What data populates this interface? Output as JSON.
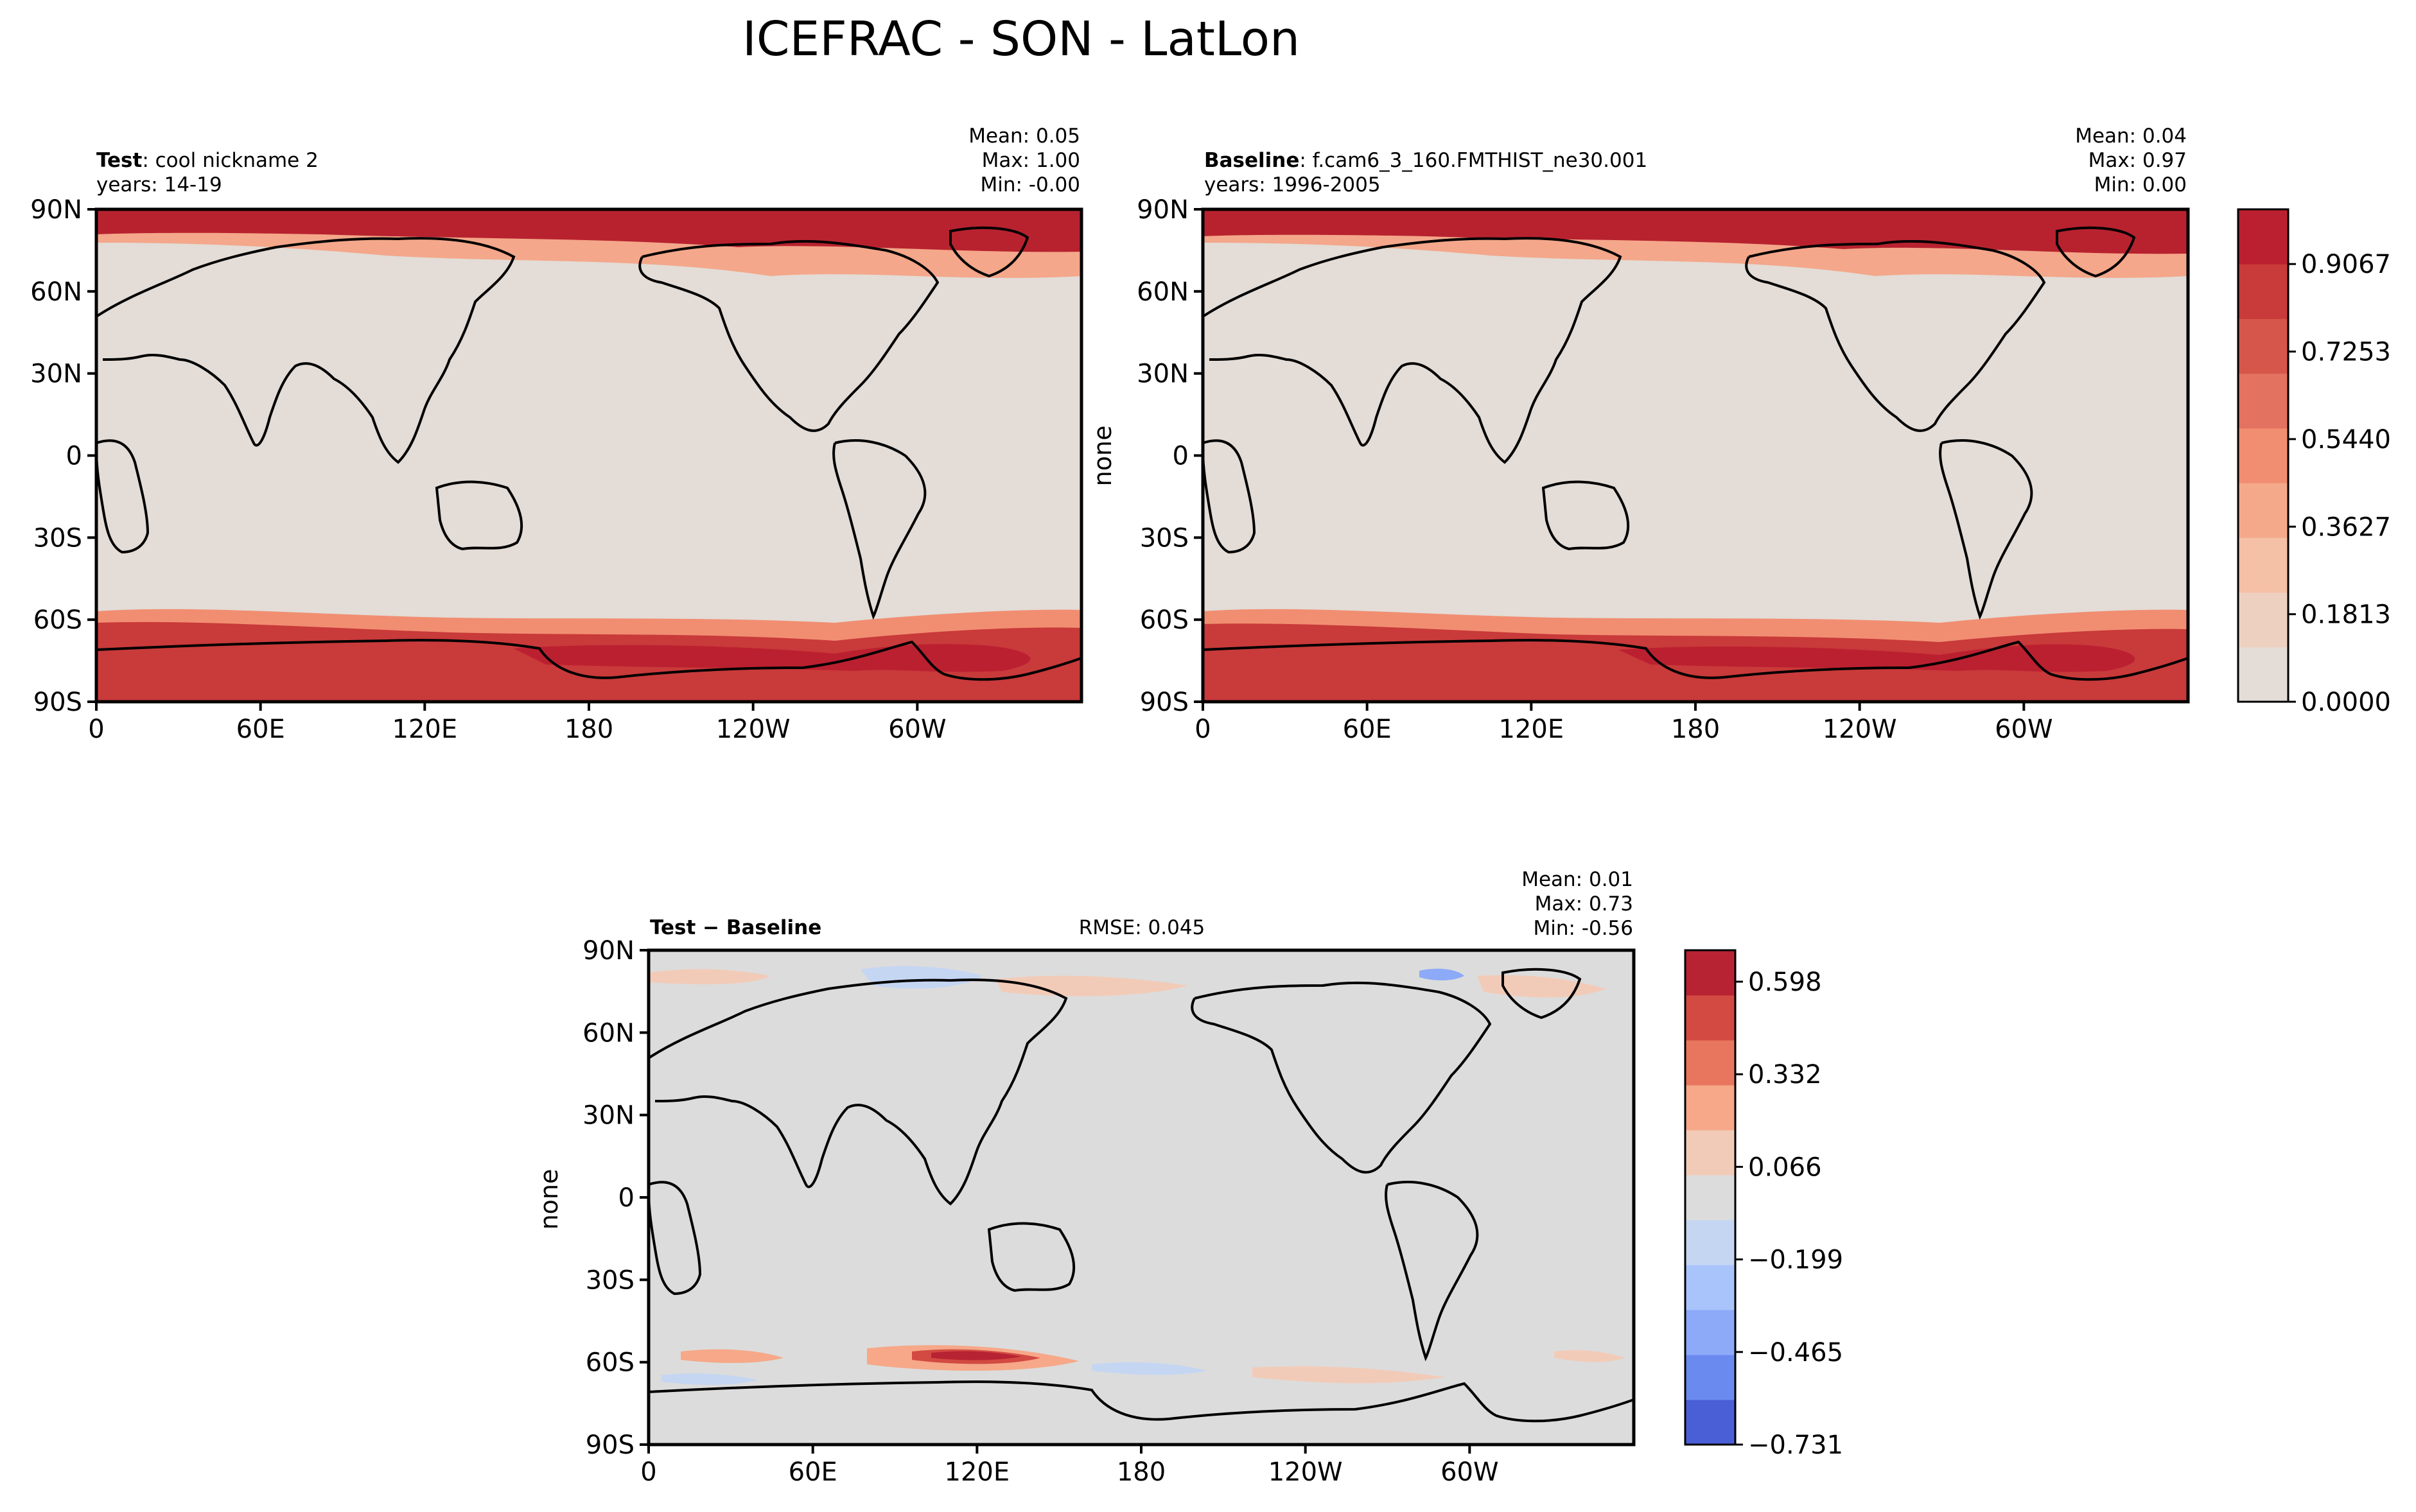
{
  "title": "ICEFRAC - SON - LatLon",
  "chart_data": [
    {
      "type": "heatmap",
      "panel": "test",
      "label_bold": "Test",
      "label_rest": ": cool nickname 2",
      "years": "years: 14-19",
      "ylabel": "",
      "stats": {
        "mean": "Mean:  0.05",
        "max": "Max:  1.00",
        "min": "Min: -0.00"
      },
      "xticks": [
        "0",
        "60E",
        "120E",
        "180",
        "120W",
        "60W"
      ],
      "yticks": [
        "90N",
        "60N",
        "30N",
        "0",
        "30S",
        "60S",
        "90S"
      ],
      "xlim": [
        0,
        360
      ],
      "ylim": [
        -90,
        90
      ],
      "field": "ICEFRAC",
      "colors": {
        "land_ocean": "#e3dcd7",
        "ice_high": "#b8222f",
        "ice_mid": "#d8523e",
        "ice_edge": "#f4a78a"
      }
    },
    {
      "type": "heatmap",
      "panel": "baseline",
      "label_bold": "Baseline",
      "label_rest": ": f.cam6_3_160.FMTHIST_ne30.001",
      "years": "years: 1996-2005",
      "ylabel": "none",
      "stats": {
        "mean": "Mean:  0.04",
        "max": "Max:  0.97",
        "min": "Min:  0.00"
      },
      "xticks": [
        "0",
        "60E",
        "120E",
        "180",
        "120W",
        "60W"
      ],
      "yticks": [
        "90N",
        "60N",
        "30N",
        "0",
        "30S",
        "60S",
        "90S"
      ],
      "xlim": [
        0,
        360
      ],
      "ylim": [
        -90,
        90
      ],
      "field": "ICEFRAC",
      "colorbar": {
        "labels": [
          "0.9067",
          "0.7253",
          "0.5440",
          "0.3627",
          "0.1813",
          "0.0000"
        ],
        "levels": [
          "#e3dcd7",
          "#eed0c0",
          "#f4c0a6",
          "#f5a98b",
          "#f18e71",
          "#e47260",
          "#d6564b",
          "#c93a3a",
          "#bb2030"
        ]
      }
    },
    {
      "type": "heatmap",
      "panel": "difference",
      "label_bold": "Test − Baseline",
      "rmse": "RMSE: 0.045",
      "ylabel": "none",
      "stats": {
        "mean": "Mean:  0.01",
        "max": "Max:  0.73",
        "min": "Min: -0.56"
      },
      "xticks": [
        "0",
        "60E",
        "120E",
        "180",
        "120W",
        "60W"
      ],
      "yticks": [
        "90N",
        "60N",
        "30N",
        "0",
        "30S",
        "60S",
        "90S"
      ],
      "xlim": [
        0,
        360
      ],
      "ylim": [
        -90,
        90
      ],
      "field": "ICEFRAC difference",
      "colorbar": {
        "labels": [
          "0.598",
          "0.332",
          "0.066",
          "−0.199",
          "−0.465",
          "−0.731"
        ],
        "levels": [
          "#4a5fd6",
          "#6b8af0",
          "#8daaf9",
          "#a9c4fb",
          "#c5d6f2",
          "#dcdcdc",
          "#f2cbb8",
          "#f6a888",
          "#e8765e",
          "#d24a42",
          "#b82333"
        ]
      }
    }
  ]
}
